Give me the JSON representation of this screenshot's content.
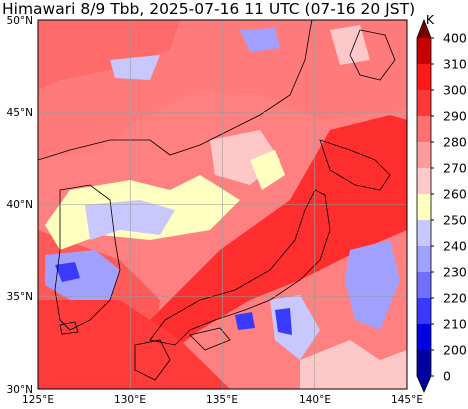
{
  "title": "Himawari 8/9 Tbb, 2025-07-16 11 UTC (07-16 20 JST)",
  "map": {
    "lon_range": [
      125,
      145
    ],
    "lat_range": [
      30,
      50
    ],
    "lat_labels": [
      "50°N",
      "45°N",
      "40°N",
      "35°N",
      "30°N"
    ],
    "lon_labels": [
      "125°E",
      "130°E",
      "135°E",
      "140°E",
      "145°E"
    ],
    "grid": true
  },
  "colorbar": {
    "unit": "K",
    "labels": [
      "400",
      "310",
      "300",
      "290",
      "280",
      "270",
      "260",
      "250",
      "240",
      "230",
      "220",
      "210",
      "200",
      "0"
    ],
    "colors": [
      "#7a0000",
      "#c80000",
      "#ff1a1a",
      "#ff3838",
      "#ff7070",
      "#ff9c9c",
      "#ffc8c8",
      "#ffffc0",
      "#c8c8ff",
      "#a0a0ff",
      "#7070ff",
      "#3a3aff",
      "#0000e0",
      "#0000a0"
    ]
  }
}
